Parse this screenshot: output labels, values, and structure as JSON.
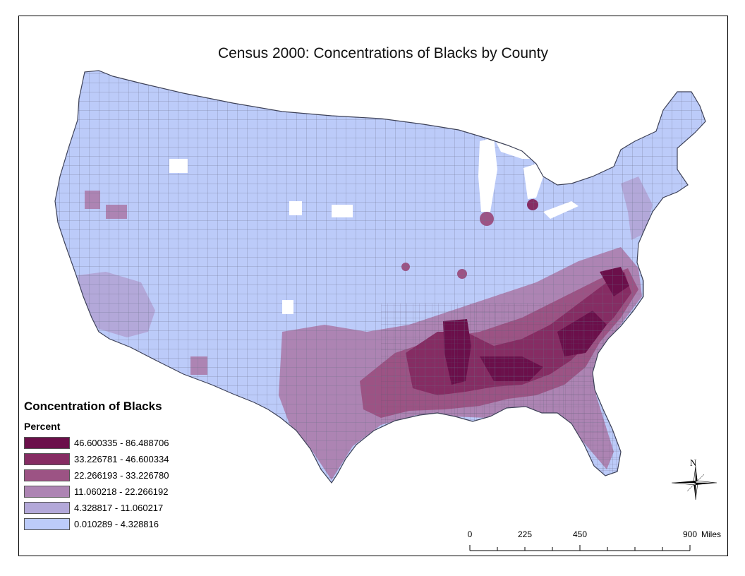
{
  "map": {
    "title": "Census 2000: Concentrations of Blacks by County"
  },
  "legend": {
    "title": "Concentration of Blacks",
    "subtitle": "Percent",
    "classes": [
      {
        "label": "46.600335 - 86.488706",
        "color": "#6b0f4a"
      },
      {
        "label": "33.226781 - 46.600334",
        "color": "#862c63"
      },
      {
        "label": "22.266193 - 33.226780",
        "color": "#9c5384"
      },
      {
        "label": "11.060218 - 22.266192",
        "color": "#ad84b3"
      },
      {
        "label": "4.328817 - 11.060217",
        "color": "#b3a8d9"
      },
      {
        "label": "0.010289 - 4.328816",
        "color": "#bccbf9"
      }
    ]
  },
  "scale": {
    "ticks": [
      "0",
      "225",
      "450",
      "900"
    ],
    "units": "Miles"
  },
  "north_arrow": {
    "letter": "N",
    "icon": "compass-rose-icon"
  }
}
